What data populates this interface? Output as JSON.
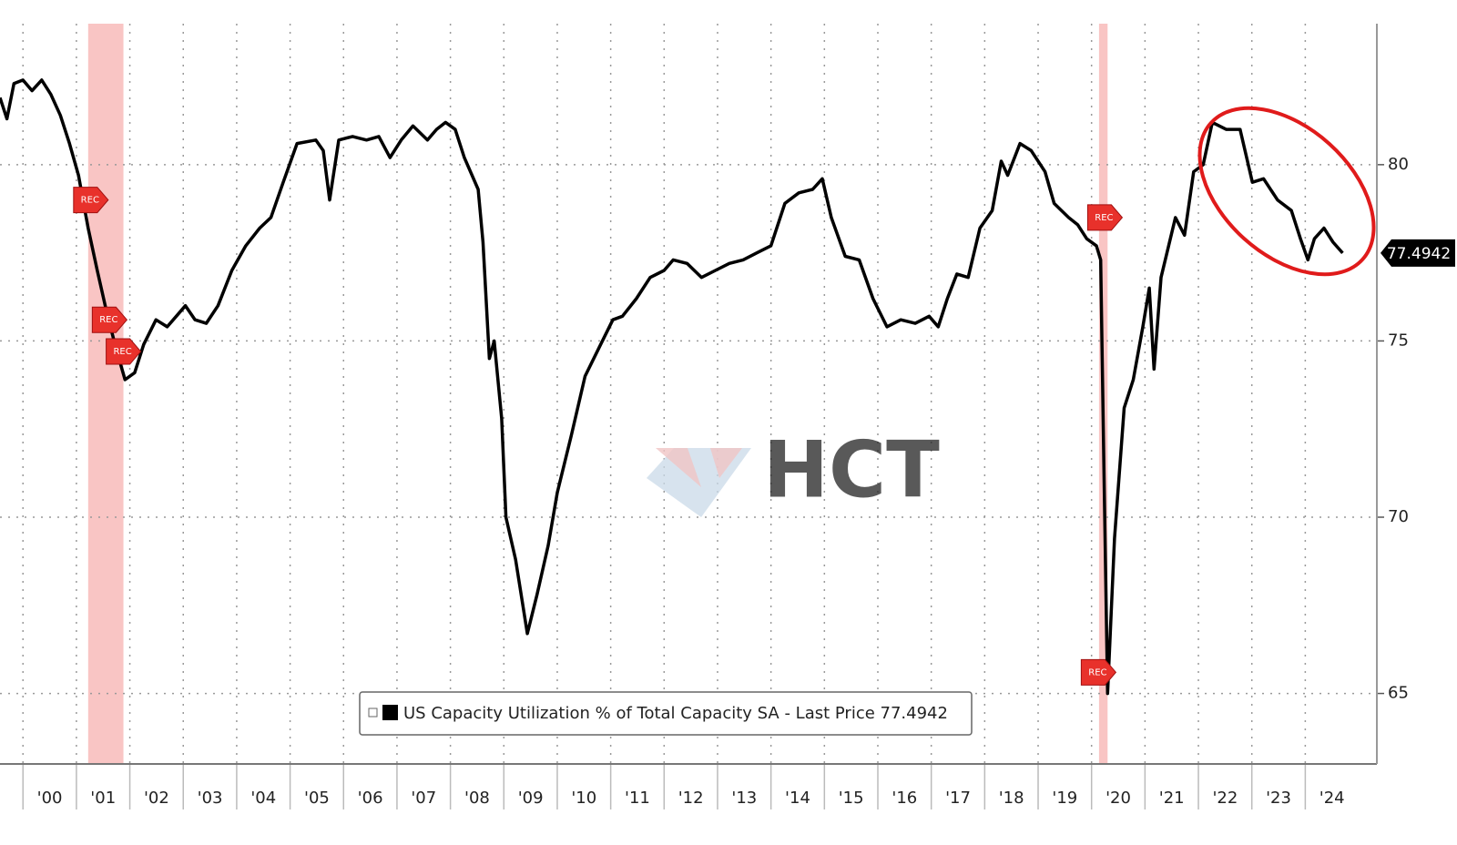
{
  "chart_data": {
    "type": "line",
    "series": [
      {
        "name": "US Capacity Utilization % of Total Capacity SA - Last Price 77.4942",
        "color": "#000000",
        "x": [
          1999.57,
          1999.7,
          1999.83,
          2000.0,
          2000.17,
          2000.35,
          2000.52,
          2000.7,
          2000.87,
          2001.04,
          2001.22,
          2001.39,
          2001.57,
          2001.74,
          2001.91,
          2002.09,
          2002.26,
          2002.49,
          2002.7,
          2002.87,
          2003.04,
          2003.22,
          2003.43,
          2003.65,
          2003.91,
          2004.17,
          2004.43,
          2004.64,
          2004.87,
          2005.13,
          2005.48,
          2005.62,
          2005.74,
          2005.91,
          2006.17,
          2006.43,
          2006.66,
          2006.87,
          2007.08,
          2007.3,
          2007.57,
          2007.74,
          2007.91,
          2008.09,
          2008.26,
          2008.52,
          2008.61,
          2008.73,
          2008.82,
          2008.96,
          2009.04,
          2009.22,
          2009.44,
          2009.62,
          2009.83,
          2010.0,
          2010.26,
          2010.52,
          2010.78,
          2011.04,
          2011.22,
          2011.48,
          2011.74,
          2012.0,
          2012.17,
          2012.43,
          2012.7,
          2012.96,
          2013.22,
          2013.48,
          2013.74,
          2014.0,
          2014.26,
          2014.52,
          2014.78,
          2014.96,
          2015.13,
          2015.39,
          2015.65,
          2015.91,
          2016.17,
          2016.43,
          2016.7,
          2016.96,
          2017.13,
          2017.3,
          2017.48,
          2017.69,
          2017.91,
          2018.14,
          2018.31,
          2018.43,
          2018.66,
          2018.87,
          2019.13,
          2019.3,
          2019.57,
          2019.74,
          2019.91,
          2020.09,
          2020.17,
          2020.23,
          2020.3,
          2020.43,
          2020.61,
          2020.78,
          2020.96,
          2021.08,
          2021.17,
          2021.3,
          2021.57,
          2021.74,
          2021.91,
          2022.09,
          2022.26,
          2022.52,
          2022.78,
          2023.01,
          2023.22,
          2023.48,
          2023.74,
          2023.91,
          2024.05,
          2024.17,
          2024.35,
          2024.52,
          2024.7
        ],
        "values": [
          81.9,
          81.3,
          82.3,
          82.4,
          82.1,
          82.4,
          82.0,
          81.4,
          80.6,
          79.7,
          78.2,
          77.0,
          75.8,
          74.8,
          73.9,
          74.1,
          74.9,
          75.6,
          75.4,
          75.7,
          76.0,
          75.6,
          75.5,
          76.0,
          77.0,
          77.7,
          78.2,
          78.5,
          79.5,
          80.6,
          80.7,
          80.4,
          79.0,
          80.7,
          80.8,
          80.7,
          80.8,
          80.2,
          80.7,
          81.1,
          80.7,
          81.0,
          81.2,
          81.0,
          80.2,
          79.3,
          77.8,
          74.5,
          75.0,
          72.8,
          70.0,
          68.8,
          66.7,
          67.8,
          69.2,
          70.7,
          72.3,
          74.0,
          74.8,
          75.6,
          75.7,
          76.2,
          76.8,
          77.0,
          77.3,
          77.2,
          76.8,
          77.0,
          77.2,
          77.3,
          77.5,
          77.7,
          78.9,
          79.2,
          79.3,
          79.6,
          78.5,
          77.4,
          77.3,
          76.2,
          75.4,
          75.6,
          75.5,
          75.7,
          75.4,
          76.2,
          76.9,
          76.8,
          78.2,
          78.7,
          80.1,
          79.7,
          80.6,
          80.4,
          79.8,
          78.9,
          78.5,
          78.3,
          77.9,
          77.7,
          77.3,
          71.5,
          65.0,
          69.4,
          73.1,
          73.9,
          75.4,
          76.5,
          74.2,
          76.8,
          78.5,
          78.0,
          79.8,
          80.0,
          81.2,
          81.0,
          81.0,
          79.5,
          79.6,
          79.0,
          78.7,
          77.9,
          77.3,
          77.9,
          78.2,
          77.8,
          77.4942
        ]
      }
    ],
    "last_price": {
      "value": 77.4942,
      "label": "77.4942"
    },
    "recessions": [
      [
        2001.22,
        2001.88
      ],
      [
        2020.14,
        2020.3
      ]
    ],
    "rec_markers": [
      {
        "x": 2001.22,
        "y": 79.0,
        "label": "REC"
      },
      {
        "x": 2001.57,
        "y": 75.6,
        "label": "REC"
      },
      {
        "x": 2001.83,
        "y": 74.7,
        "label": "REC"
      },
      {
        "x": 2020.2,
        "y": 78.5,
        "label": "REC"
      },
      {
        "x": 2020.08,
        "y": 65.6,
        "label": "REC"
      }
    ],
    "watermark": "HCT",
    "xlim": [
      1999.57,
      2025.34
    ],
    "ylim": [
      63,
      84
    ],
    "yticks": [
      65,
      70,
      75,
      80
    ],
    "xticks": [
      {
        "value": 2000,
        "label": "'00"
      },
      {
        "value": 2001,
        "label": "'01"
      },
      {
        "value": 2002,
        "label": "'02"
      },
      {
        "value": 2003,
        "label": "'03"
      },
      {
        "value": 2004,
        "label": "'04"
      },
      {
        "value": 2005,
        "label": "'05"
      },
      {
        "value": 2006,
        "label": "'06"
      },
      {
        "value": 2007,
        "label": "'07"
      },
      {
        "value": 2008,
        "label": "'08"
      },
      {
        "value": 2009,
        "label": "'09"
      },
      {
        "value": 2010,
        "label": "'10"
      },
      {
        "value": 2011,
        "label": "'11"
      },
      {
        "value": 2012,
        "label": "'12"
      },
      {
        "value": 2013,
        "label": "'13"
      },
      {
        "value": 2014,
        "label": "'14"
      },
      {
        "value": 2015,
        "label": "'15"
      },
      {
        "value": 2016,
        "label": "'16"
      },
      {
        "value": 2017,
        "label": "'17"
      },
      {
        "value": 2018,
        "label": "'18"
      },
      {
        "value": 2019,
        "label": "'19"
      },
      {
        "value": 2020,
        "label": "'20"
      },
      {
        "value": 2021,
        "label": "'21"
      },
      {
        "value": 2022,
        "label": "'22"
      },
      {
        "value": 2023,
        "label": "'23"
      },
      {
        "value": 2024,
        "label": "'24"
      }
    ],
    "grid": true
  }
}
